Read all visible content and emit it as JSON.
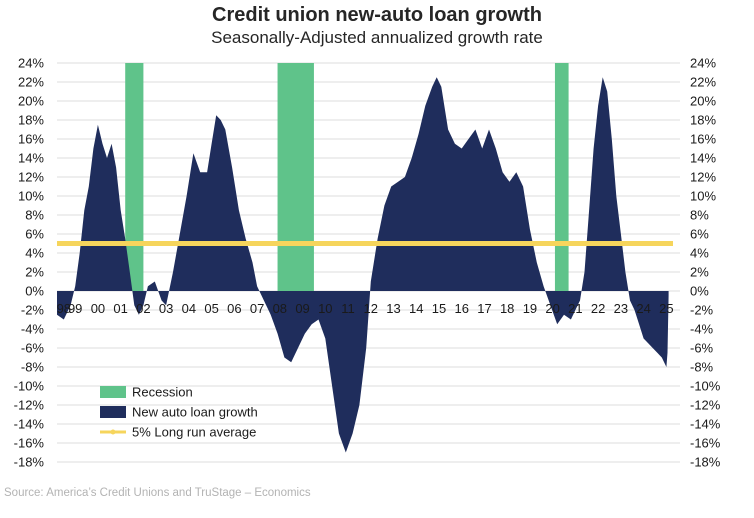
{
  "title": "Credit union new-auto loan growth",
  "subtitle": "Seasonally-Adjusted annualized growth rate",
  "source": "Source: America’s Credit Unions and TruStage – Economics",
  "colors": {
    "growth": "#1f2d5c",
    "recession": "#5fc38a",
    "average": "#f6d55c",
    "grid": "#dddddd"
  },
  "chart_data": {
    "type": "area",
    "xlim": [
      1998.2,
      2025.6
    ],
    "ylim": [
      -18,
      24
    ],
    "y_ticks": [
      -18,
      -16,
      -14,
      -12,
      -10,
      -8,
      -6,
      -4,
      -2,
      0,
      2,
      4,
      6,
      8,
      10,
      12,
      14,
      16,
      18,
      20,
      22,
      24
    ],
    "y_tick_labels": [
      "-18%",
      "-16%",
      "-14%",
      "-12%",
      "-10%",
      "-8%",
      "-6%",
      "-4%",
      "-2%",
      "0%",
      "2%",
      "4%",
      "6%",
      "8%",
      "10%",
      "12%",
      "14%",
      "16%",
      "18%",
      "20%",
      "22%",
      "24%"
    ],
    "x_ticks": [
      {
        "label": "98",
        "x": 1998.5
      },
      {
        "label": "99",
        "x": 1999.0
      },
      {
        "label": "00",
        "x": 2000.0
      },
      {
        "label": "01",
        "x": 2001.0
      },
      {
        "label": "02",
        "x": 2002.0
      },
      {
        "label": "03",
        "x": 2003.0
      },
      {
        "label": "04",
        "x": 2004.0
      },
      {
        "label": "05",
        "x": 2005.0
      },
      {
        "label": "06",
        "x": 2006.0
      },
      {
        "label": "07",
        "x": 2007.0
      },
      {
        "label": "08",
        "x": 2008.0
      },
      {
        "label": "09",
        "x": 2009.0
      },
      {
        "label": "10",
        "x": 2010.0
      },
      {
        "label": "11",
        "x": 2011.0
      },
      {
        "label": "12",
        "x": 2012.0
      },
      {
        "label": "13",
        "x": 2013.0
      },
      {
        "label": "14",
        "x": 2014.0
      },
      {
        "label": "15",
        "x": 2015.0
      },
      {
        "label": "16",
        "x": 2016.0
      },
      {
        "label": "17",
        "x": 2017.0
      },
      {
        "label": "18",
        "x": 2018.0
      },
      {
        "label": "19",
        "x": 2019.0
      },
      {
        "label": "20",
        "x": 2020.0
      },
      {
        "label": "21",
        "x": 2021.0
      },
      {
        "label": "22",
        "x": 2022.0
      },
      {
        "label": "23",
        "x": 2023.0
      },
      {
        "label": "24",
        "x": 2024.0
      },
      {
        "label": "25",
        "x": 2025.0
      }
    ],
    "recessions": [
      {
        "start": 2001.2,
        "end": 2002.0
      },
      {
        "start": 2007.9,
        "end": 2009.5
      },
      {
        "start": 2020.1,
        "end": 2020.7
      }
    ],
    "long_run_average": 5,
    "legend": [
      {
        "key": "recession",
        "label": "Recession"
      },
      {
        "key": "growth",
        "label": "New auto loan growth"
      },
      {
        "key": "average",
        "label": "5% Long run average"
      }
    ],
    "series": [
      {
        "name": "New auto loan growth",
        "points": [
          [
            1998.2,
            -2.5
          ],
          [
            1998.5,
            -3.0
          ],
          [
            1998.8,
            -1.5
          ],
          [
            1999.0,
            0.5
          ],
          [
            1999.2,
            4.0
          ],
          [
            1999.4,
            8.5
          ],
          [
            1999.6,
            11.0
          ],
          [
            1999.8,
            15.0
          ],
          [
            2000.0,
            17.5
          ],
          [
            2000.2,
            15.5
          ],
          [
            2000.4,
            14.0
          ],
          [
            2000.6,
            15.5
          ],
          [
            2000.8,
            13.0
          ],
          [
            2001.0,
            8.5
          ],
          [
            2001.2,
            5.5
          ],
          [
            2001.4,
            2.0
          ],
          [
            2001.6,
            -1.5
          ],
          [
            2001.8,
            -2.5
          ],
          [
            2002.0,
            -1.5
          ],
          [
            2002.2,
            0.5
          ],
          [
            2002.5,
            1.0
          ],
          [
            2002.8,
            -1.0
          ],
          [
            2003.0,
            -1.5
          ],
          [
            2003.3,
            2.0
          ],
          [
            2003.6,
            6.0
          ],
          [
            2003.9,
            10.0
          ],
          [
            2004.2,
            14.5
          ],
          [
            2004.5,
            12.5
          ],
          [
            2004.8,
            12.5
          ],
          [
            2005.0,
            15.5
          ],
          [
            2005.2,
            18.5
          ],
          [
            2005.4,
            18.0
          ],
          [
            2005.6,
            17.0
          ],
          [
            2005.9,
            13.0
          ],
          [
            2006.2,
            8.5
          ],
          [
            2006.5,
            5.5
          ],
          [
            2006.8,
            3.0
          ],
          [
            2007.0,
            0.5
          ],
          [
            2007.3,
            -1.0
          ],
          [
            2007.6,
            -2.5
          ],
          [
            2007.9,
            -4.5
          ],
          [
            2008.2,
            -7.0
          ],
          [
            2008.5,
            -7.5
          ],
          [
            2008.8,
            -6.0
          ],
          [
            2009.1,
            -4.5
          ],
          [
            2009.4,
            -3.5
          ],
          [
            2009.7,
            -3.0
          ],
          [
            2010.0,
            -5.0
          ],
          [
            2010.3,
            -10.0
          ],
          [
            2010.6,
            -15.0
          ],
          [
            2010.9,
            -17.0
          ],
          [
            2011.2,
            -15.0
          ],
          [
            2011.5,
            -12.0
          ],
          [
            2011.8,
            -6.0
          ],
          [
            2012.0,
            1.0
          ],
          [
            2012.3,
            5.5
          ],
          [
            2012.6,
            9.0
          ],
          [
            2012.9,
            11.0
          ],
          [
            2013.2,
            11.5
          ],
          [
            2013.5,
            12.0
          ],
          [
            2013.8,
            14.0
          ],
          [
            2014.1,
            16.5
          ],
          [
            2014.4,
            19.5
          ],
          [
            2014.7,
            21.5
          ],
          [
            2014.9,
            22.5
          ],
          [
            2015.1,
            21.5
          ],
          [
            2015.4,
            17.0
          ],
          [
            2015.7,
            15.5
          ],
          [
            2016.0,
            15.0
          ],
          [
            2016.3,
            16.0
          ],
          [
            2016.6,
            17.0
          ],
          [
            2016.9,
            15.0
          ],
          [
            2017.2,
            17.0
          ],
          [
            2017.5,
            15.0
          ],
          [
            2017.8,
            12.5
          ],
          [
            2018.1,
            11.5
          ],
          [
            2018.4,
            12.5
          ],
          [
            2018.7,
            11.0
          ],
          [
            2019.0,
            6.5
          ],
          [
            2019.3,
            3.0
          ],
          [
            2019.6,
            0.5
          ],
          [
            2019.9,
            -1.5
          ],
          [
            2020.2,
            -3.5
          ],
          [
            2020.5,
            -2.5
          ],
          [
            2020.8,
            -3.0
          ],
          [
            2021.0,
            -2.0
          ],
          [
            2021.2,
            -1.0
          ],
          [
            2021.4,
            2.0
          ],
          [
            2021.6,
            8.5
          ],
          [
            2021.8,
            15.0
          ],
          [
            2022.0,
            19.5
          ],
          [
            2022.2,
            22.5
          ],
          [
            2022.4,
            21.0
          ],
          [
            2022.6,
            16.0
          ],
          [
            2022.8,
            10.0
          ],
          [
            2023.0,
            6.0
          ],
          [
            2023.2,
            2.0
          ],
          [
            2023.4,
            -1.0
          ],
          [
            2023.6,
            -2.0
          ],
          [
            2023.8,
            -3.5
          ],
          [
            2024.0,
            -5.0
          ],
          [
            2024.2,
            -5.5
          ],
          [
            2024.4,
            -6.0
          ],
          [
            2024.6,
            -6.5
          ],
          [
            2024.8,
            -7.0
          ],
          [
            2025.0,
            -8.0
          ],
          [
            2025.05,
            -6.5
          ],
          [
            2025.1,
            -0.5
          ]
        ]
      }
    ]
  }
}
